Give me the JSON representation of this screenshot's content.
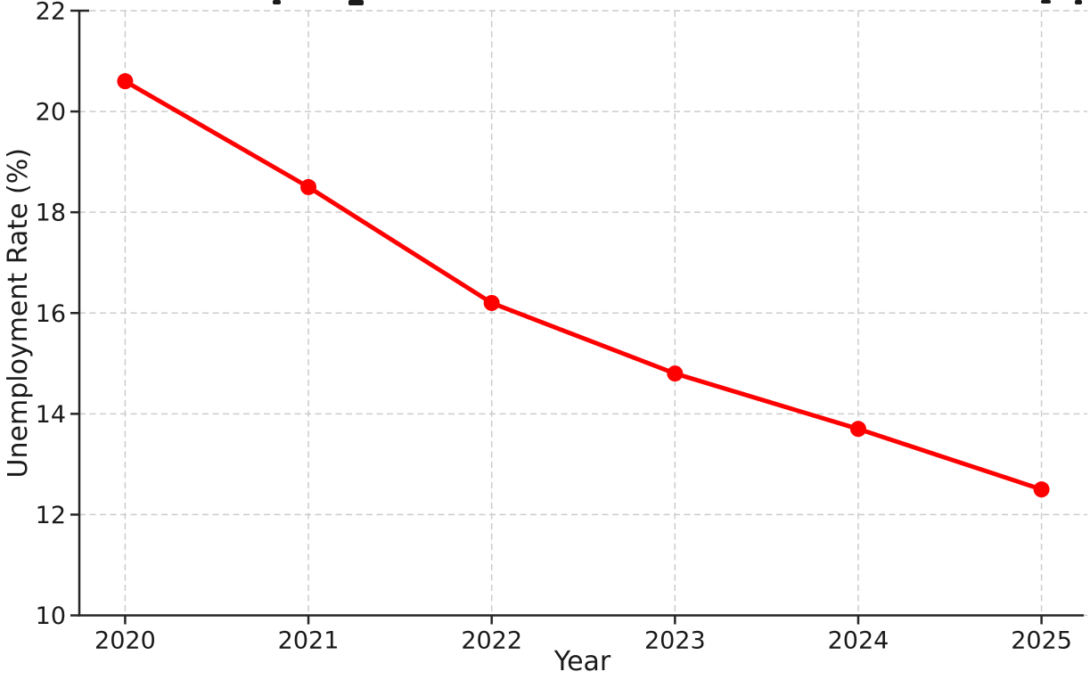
{
  "chart_data": {
    "type": "line",
    "title": "",
    "title_clipped": true,
    "xlabel": "Year",
    "ylabel": "Unemployment Rate (%)",
    "x": [
      2020,
      2021,
      2022,
      2023,
      2024,
      2025
    ],
    "series": [
      {
        "name": "Unemployment Rate",
        "values": [
          20.6,
          18.5,
          16.2,
          14.8,
          13.7,
          12.5
        ]
      }
    ],
    "xticks": [
      2020,
      2021,
      2022,
      2023,
      2024,
      2025
    ],
    "yticks": [
      10,
      12,
      14,
      16,
      18,
      20,
      22
    ],
    "xlim": [
      2019.75,
      2025.25
    ],
    "ylim": [
      10,
      22
    ],
    "grid": {
      "visible": true,
      "style": "dashed",
      "color": "#cccccc"
    },
    "legend": {
      "visible": false
    },
    "line_color": "#ff0000",
    "marker": "circle",
    "marker_color": "#ff0000",
    "axis_color": "#262626",
    "text_color": "#1a1a1a",
    "background_color": "#ffffff"
  }
}
